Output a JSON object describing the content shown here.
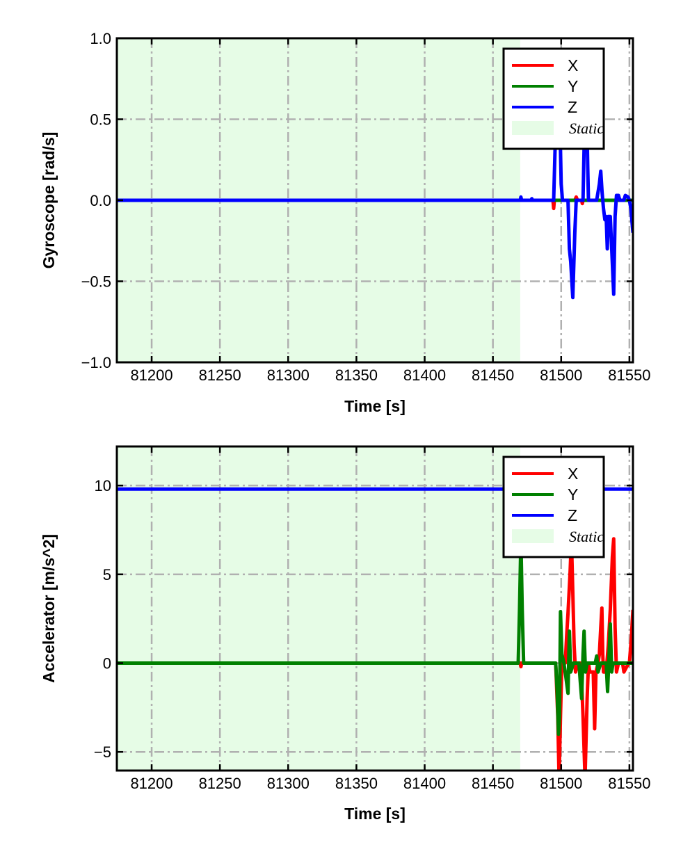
{
  "chart_data": [
    {
      "type": "line",
      "xlabel": "Time [s]",
      "ylabel": "Gyroscope [rad/s]",
      "xlim": [
        81174.5,
        81552.6
      ],
      "ylim": [
        -1.0,
        1.0
      ],
      "xticks": [
        81200,
        81250,
        81300,
        81350,
        81400,
        81450,
        81500,
        81550
      ],
      "xtick_labels": [
        "81200",
        "81250",
        "81300",
        "81350",
        "81400",
        "81450",
        "81500",
        "81550"
      ],
      "yticks": [
        -1.0,
        -0.5,
        0.0,
        0.5,
        1.0
      ],
      "ytick_labels": [
        "−1.0",
        "−0.5",
        "0.0",
        "0.5",
        "1.0"
      ],
      "grid": true,
      "legend_placement": "top-right",
      "static_region": {
        "label": "Static",
        "x": [
          81174.5,
          81470
        ],
        "color": "#e6fce6"
      },
      "series": [
        {
          "name": "X",
          "color": "#ff0000",
          "points": [
            [
              81174.5,
              0
            ],
            [
              81494,
              0
            ],
            [
              81494.5,
              -0.05
            ],
            [
              81495,
              0
            ],
            [
              81510,
              0
            ],
            [
              81511,
              0.02
            ],
            [
              81512,
              0
            ],
            [
              81515,
              0
            ],
            [
              81515.5,
              -0.02
            ],
            [
              81516,
              0
            ],
            [
              81552.6,
              0
            ]
          ]
        },
        {
          "name": "Y",
          "color": "#008000",
          "points": [
            [
              81174.5,
              0
            ],
            [
              81552.6,
              0
            ]
          ]
        },
        {
          "name": "Z",
          "color": "#0000ff",
          "points": [
            [
              81174.5,
              0
            ],
            [
              81470,
              0
            ],
            [
              81470.5,
              0.02
            ],
            [
              81471,
              0
            ],
            [
              81478,
              0
            ],
            [
              81478.5,
              0.01
            ],
            [
              81479,
              0
            ],
            [
              81494.5,
              0
            ],
            [
              81495.5,
              0.3
            ],
            [
              81497,
              0.75
            ],
            [
              81498.5,
              0.75
            ],
            [
              81500,
              0.1
            ],
            [
              81501,
              0
            ],
            [
              81505,
              0
            ],
            [
              81506,
              -0.3
            ],
            [
              81507,
              -0.38
            ],
            [
              81508.5,
              -0.6
            ],
            [
              81510,
              -0.2
            ],
            [
              81511,
              0
            ],
            [
              81516,
              0
            ],
            [
              81517,
              0.4
            ],
            [
              81518.5,
              0.7
            ],
            [
              81519.5,
              0.2
            ],
            [
              81520,
              0
            ],
            [
              81526,
              0
            ],
            [
              81528,
              0.1
            ],
            [
              81529,
              0.18
            ],
            [
              81530,
              0.05
            ],
            [
              81531,
              -0.05
            ],
            [
              81532,
              -0.12
            ],
            [
              81533,
              -0.1
            ],
            [
              81533.8,
              -0.3
            ],
            [
              81534.5,
              -0.1
            ],
            [
              81536,
              -0.1
            ],
            [
              81538.5,
              -0.58
            ],
            [
              81539.5,
              -0.1
            ],
            [
              81540.5,
              0.03
            ],
            [
              81542,
              0.03
            ],
            [
              81543,
              0
            ],
            [
              81546,
              0
            ],
            [
              81547,
              0.03
            ],
            [
              81549,
              0.02
            ],
            [
              81550,
              0
            ],
            [
              81551,
              -0.05
            ],
            [
              81552.6,
              -0.2
            ]
          ]
        }
      ]
    },
    {
      "type": "line",
      "xlabel": "Time [s]",
      "ylabel": "Accelerator [m/s^2]",
      "xlim": [
        81174.5,
        81552.6
      ],
      "ylim": [
        -6.05,
        12.2
      ],
      "xticks": [
        81200,
        81250,
        81300,
        81350,
        81400,
        81450,
        81500,
        81550
      ],
      "xtick_labels": [
        "81200",
        "81250",
        "81300",
        "81350",
        "81400",
        "81450",
        "81500",
        "81550"
      ],
      "yticks": [
        -5,
        0,
        5,
        10
      ],
      "ytick_labels": [
        "−5",
        "0",
        "5",
        "10"
      ],
      "grid": true,
      "legend_placement": "top-right",
      "static_region": {
        "label": "Static",
        "x": [
          81174.5,
          81470
        ],
        "color": "#e6fce6"
      },
      "series": [
        {
          "name": "X",
          "color": "#ff0000",
          "points": [
            [
              81174.5,
              0
            ],
            [
              81470,
              0
            ],
            [
              81470.5,
              -0.2
            ],
            [
              81471,
              0
            ],
            [
              81496,
              0
            ],
            [
              81497.5,
              -3
            ],
            [
              81498.5,
              -6.5
            ],
            [
              81499.5,
              -3
            ],
            [
              81500.5,
              0
            ],
            [
              81503,
              0
            ],
            [
              81504,
              1.5
            ],
            [
              81505,
              2.8
            ],
            [
              81506.5,
              5
            ],
            [
              81507.5,
              7
            ],
            [
              81508.5,
              4
            ],
            [
              81509.5,
              1
            ],
            [
              81510.5,
              -0.5
            ],
            [
              81512,
              0
            ],
            [
              81514,
              0
            ],
            [
              81515,
              -1
            ],
            [
              81516,
              -3
            ],
            [
              81517.5,
              -6.5
            ],
            [
              81519,
              -2
            ],
            [
              81520,
              0
            ],
            [
              81521,
              -0.5
            ],
            [
              81523.5,
              -0.5
            ],
            [
              81524.5,
              -3.7
            ],
            [
              81525.5,
              -0.5
            ],
            [
              81527,
              0
            ],
            [
              81528,
              0.5
            ],
            [
              81529,
              2
            ],
            [
              81529.8,
              3.1
            ],
            [
              81530.5,
              0.5
            ],
            [
              81531,
              -0.5
            ],
            [
              81533,
              -0.5
            ],
            [
              81534.5,
              1
            ],
            [
              81536,
              3
            ],
            [
              81537.5,
              6
            ],
            [
              81538.5,
              7
            ],
            [
              81539.5,
              2
            ],
            [
              81540.5,
              -0.5
            ],
            [
              81542,
              0
            ],
            [
              81545,
              0
            ],
            [
              81546,
              -0.5
            ],
            [
              81548,
              -0.2
            ],
            [
              81550,
              0
            ],
            [
              81551.5,
              1.5
            ],
            [
              81552.6,
              3
            ]
          ]
        },
        {
          "name": "Y",
          "color": "#008000",
          "points": [
            [
              81174.5,
              0
            ],
            [
              81468.5,
              0
            ],
            [
              81469.5,
              3
            ],
            [
              81470.5,
              7
            ],
            [
              81471.5,
              3
            ],
            [
              81472.5,
              0
            ],
            [
              81496,
              0
            ],
            [
              81497,
              -1.5
            ],
            [
              81498,
              -4
            ],
            [
              81498.8,
              -3
            ],
            [
              81499.5,
              2.9
            ],
            [
              81500.5,
              0.5
            ],
            [
              81502,
              0
            ],
            [
              81503.5,
              -0.8
            ],
            [
              81505,
              -1.7
            ],
            [
              81506,
              1.8
            ],
            [
              81507,
              -0.5
            ],
            [
              81509,
              0
            ],
            [
              81513,
              0
            ],
            [
              81514,
              -1
            ],
            [
              81515,
              -2
            ],
            [
              81516,
              0.5
            ],
            [
              81516.8,
              1.8
            ],
            [
              81517.8,
              -0.5
            ],
            [
              81519,
              0
            ],
            [
              81525,
              0
            ],
            [
              81526,
              0.4
            ],
            [
              81527,
              -0.5
            ],
            [
              81529,
              0
            ],
            [
              81533,
              0
            ],
            [
              81534,
              -1.6
            ],
            [
              81535,
              0.3
            ],
            [
              81536,
              2.2
            ],
            [
              81537,
              -0.5
            ],
            [
              81538,
              0
            ],
            [
              81552.6,
              0
            ]
          ]
        },
        {
          "name": "Z",
          "color": "#0000ff",
          "points": [
            [
              81174.5,
              9.8
            ],
            [
              81552.6,
              9.8
            ]
          ]
        }
      ]
    }
  ]
}
